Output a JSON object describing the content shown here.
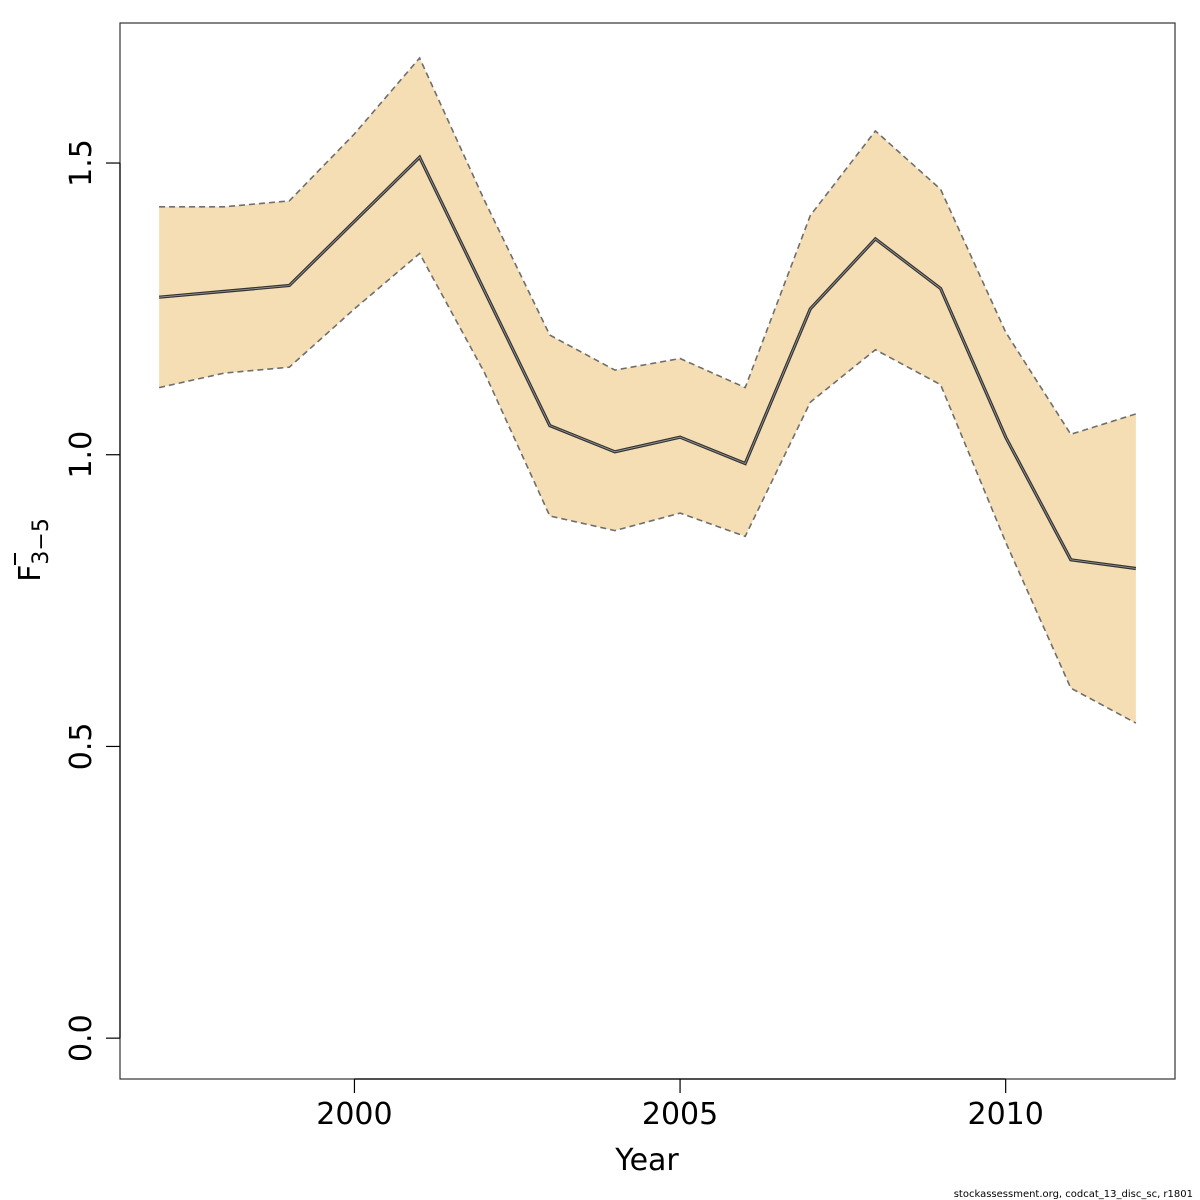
{
  "chart_data": {
    "type": "line",
    "xlabel": "Year",
    "ylabel_main": "F",
    "ylabel_sub": "3−5",
    "xlim": [
      1996.4,
      2012.6
    ],
    "ylim": [
      -0.07,
      1.74
    ],
    "x_ticks": [
      2000,
      2005,
      2010
    ],
    "y_ticks": [
      0.0,
      0.5,
      1.0,
      1.5
    ],
    "y_tick_labels": [
      "0.0",
      "0.5",
      "1.0",
      "1.5"
    ],
    "grid": false,
    "x": [
      1997,
      1998,
      1999,
      2000,
      2001,
      2002,
      2003,
      2004,
      2005,
      2006,
      2007,
      2008,
      2009,
      2010,
      2011,
      2012
    ],
    "series": [
      {
        "role": "estimate",
        "values": [
          1.27,
          1.28,
          1.29,
          1.4,
          1.51,
          1.28,
          1.05,
          1.005,
          1.03,
          0.985,
          1.25,
          1.37,
          1.285,
          1.03,
          0.82,
          0.805
        ]
      },
      {
        "role": "upper",
        "values": [
          1.425,
          1.425,
          1.435,
          1.55,
          1.68,
          1.435,
          1.205,
          1.145,
          1.165,
          1.115,
          1.41,
          1.555,
          1.455,
          1.21,
          1.035,
          1.07
        ]
      },
      {
        "role": "lower",
        "values": [
          1.115,
          1.14,
          1.15,
          1.25,
          1.345,
          1.14,
          0.895,
          0.87,
          0.9,
          0.86,
          1.09,
          1.18,
          1.12,
          0.85,
          0.6,
          0.54
        ]
      }
    ],
    "colors": {
      "band": "#f5deb3",
      "line": "#333333",
      "bound": "#6e6e6e",
      "axis": "#000000"
    }
  },
  "credit": "stockassessment.org, codcat_13_disc_sc, r1801"
}
